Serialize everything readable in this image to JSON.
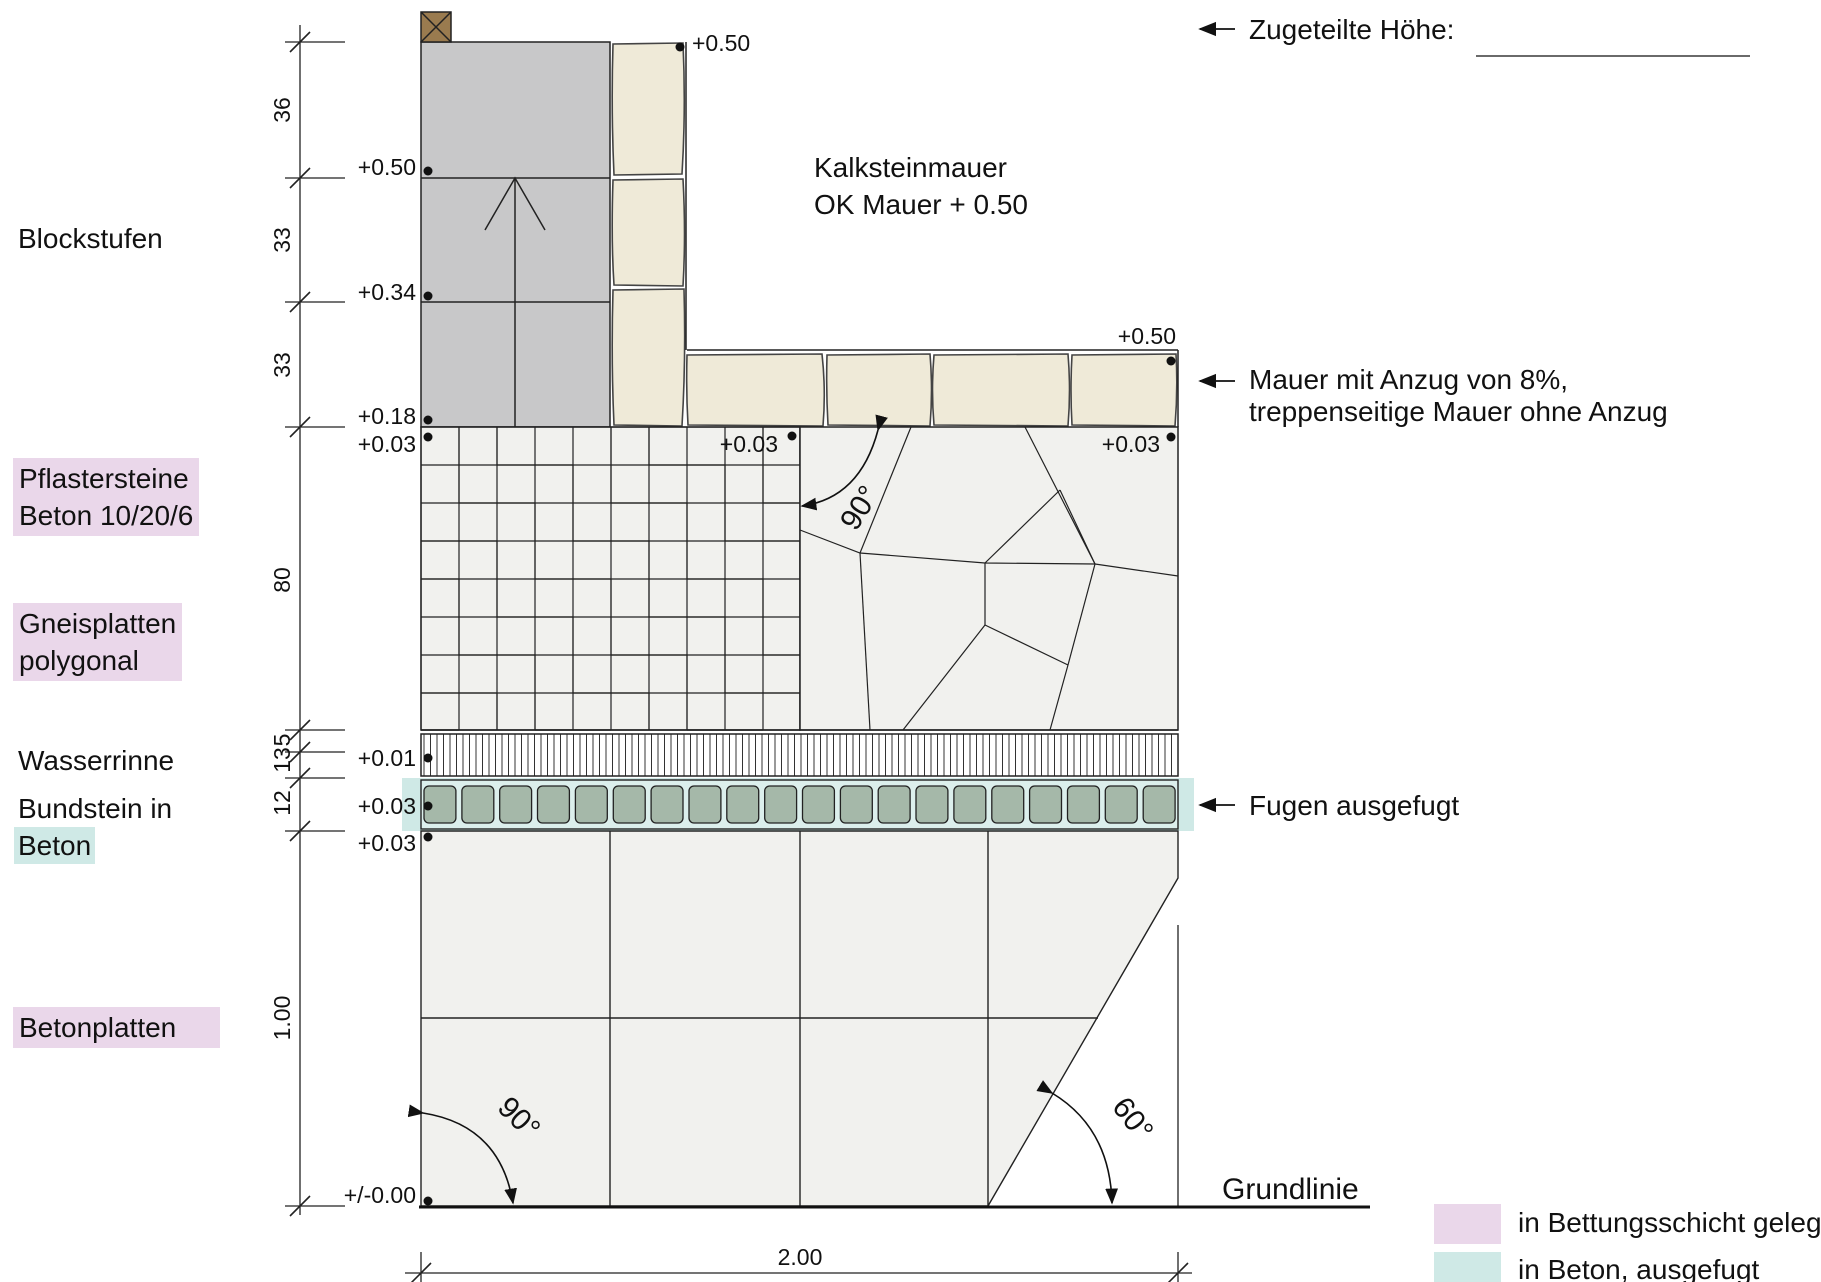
{
  "side_labels": {
    "blockstufen": "Blockstufen",
    "pflaster_1": "Pflastersteine",
    "pflaster_2": "Beton 10/20/6",
    "gneis_1": "Gneisplatten",
    "gneis_2": "polygonal",
    "wasserrinne": "Wasserrinne",
    "bundstein_1": "Bundstein in",
    "bundstein_2": "Beton",
    "betonplatten": "Betonplatten"
  },
  "dimensions": {
    "d36": "36",
    "d33a": "33",
    "d33b": "33",
    "d80": "80",
    "d13": "13",
    "d5": "5",
    "d12": "12",
    "d100": "1.00",
    "width": "2.00"
  },
  "levels": {
    "top_wall": "+0.50",
    "step_1": "+0.50",
    "step_2": "+0.34",
    "step_3": "+0.18",
    "paving_left": "+0.03",
    "paving_mid": "+0.03",
    "paving_right": "+0.03",
    "wall_right": "+0.50",
    "gutter": "+0.01",
    "bund_top": "+0.03",
    "bund_bottom": "+0.03",
    "ground": "+/-0.00"
  },
  "angles": {
    "upper": "90°",
    "lower_left": "90°",
    "lower_right": "60°"
  },
  "annotations": {
    "wall_title_1": "Kalksteinmauer",
    "wall_title_2": "OK Mauer + 0.50",
    "height_label": "Zugeteilte Höhe:",
    "batter_1": "Mauer mit Anzug von 8%,",
    "batter_2": "treppenseitige Mauer ohne Anzug",
    "joints": "Fugen ausgefugt",
    "baseline": "Grundlinie"
  },
  "legend": [
    {
      "color": "#ead7ea",
      "label": "in Bettungsschicht gelegt"
    },
    {
      "color": "#cfe9e6",
      "label": "in Beton, ausgefugt"
    }
  ],
  "colors": {
    "steps": "#c8c8c9",
    "limestone": "#efead8",
    "paving": "#f1f1ee",
    "bundstein": "#a5b8a9",
    "pink_highlight": "#ead7ea",
    "teal_highlight": "#cfe9e6"
  }
}
